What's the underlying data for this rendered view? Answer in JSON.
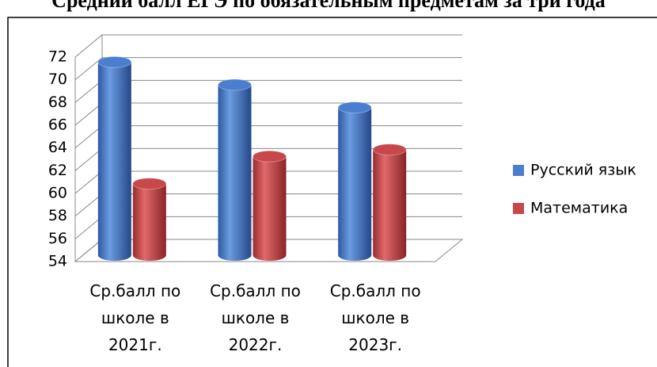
{
  "chart_data": {
    "type": "bar3d",
    "title": "Средний балл ЕГЭ по обязательным предметам за три года",
    "categories": [
      "Ср.балл по школе в 2021г.",
      "Ср.балл по школе в 2022г.",
      "Ср.балл по школе в 2023г."
    ],
    "series": [
      {
        "name": "Русский язык",
        "color": "#4a7fcf",
        "values": [
          71,
          69,
          67
        ]
      },
      {
        "name": "Математика",
        "color": "#c8474a",
        "values": [
          60.3,
          62.7,
          63.3
        ]
      }
    ],
    "ylim": [
      54,
      72
    ],
    "yticks": [
      54,
      56,
      58,
      60,
      62,
      64,
      66,
      68,
      70,
      72
    ],
    "grid": true,
    "legend": "right"
  }
}
